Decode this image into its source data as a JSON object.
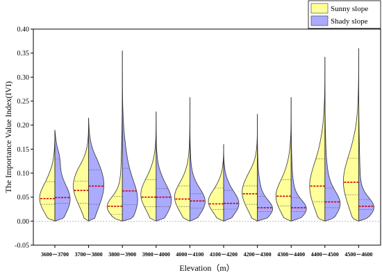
{
  "chart_data": {
    "type": "violin",
    "split": true,
    "xlabel": "Elevation（m）",
    "ylabel": "The Importance Value Index(IVI)",
    "ylim": [
      -0.05,
      0.4
    ],
    "yticks": [
      -0.05,
      0.0,
      0.05,
      0.1,
      0.15,
      0.2,
      0.25,
      0.3,
      0.35,
      0.4
    ],
    "legend": {
      "position": "top-right"
    },
    "categories": [
      "3600－3700",
      "3700－3800",
      "3800－3900",
      "3900－4000",
      "4000－4100",
      "4100－4200",
      "4200－4300",
      "4300－4400",
      "4400－4500",
      "4500－4600"
    ],
    "series": [
      {
        "name": "Sunny slope",
        "color": "#ffff99",
        "side": "left",
        "stats": [
          {
            "min": 0.0,
            "max": 0.19,
            "q1": 0.035,
            "median": 0.047,
            "q3": 0.082,
            "mode": 0.045
          },
          {
            "min": 0.0,
            "max": 0.215,
            "q1": 0.037,
            "median": 0.064,
            "q3": 0.083,
            "mode": 0.075
          },
          {
            "min": 0.0,
            "max": 0.355,
            "q1": 0.014,
            "median": 0.031,
            "q3": 0.052,
            "mode": 0.03
          },
          {
            "min": 0.0,
            "max": 0.228,
            "q1": 0.03,
            "median": 0.05,
            "q3": 0.086,
            "mode": 0.055
          },
          {
            "min": 0.0,
            "max": 0.258,
            "q1": 0.03,
            "median": 0.046,
            "q3": 0.073,
            "mode": 0.05
          },
          {
            "min": 0.0,
            "max": 0.16,
            "q1": 0.024,
            "median": 0.036,
            "q3": 0.069,
            "mode": 0.04
          },
          {
            "min": 0.0,
            "max": 0.223,
            "q1": 0.035,
            "median": 0.057,
            "q3": 0.073,
            "mode": 0.06
          },
          {
            "min": 0.0,
            "max": 0.258,
            "q1": 0.032,
            "median": 0.052,
            "q3": 0.086,
            "mode": 0.05
          },
          {
            "min": 0.0,
            "max": 0.342,
            "q1": 0.04,
            "median": 0.073,
            "q3": 0.13,
            "mode": 0.07
          },
          {
            "min": 0.0,
            "max": 0.36,
            "q1": 0.055,
            "median": 0.081,
            "q3": 0.131,
            "mode": 0.08
          }
        ]
      },
      {
        "name": "Shady slope",
        "color": "#aaaaff",
        "side": "right",
        "stats": [
          {
            "min": 0.0,
            "max": 0.19,
            "q1": 0.037,
            "median": 0.049,
            "q3": 0.13,
            "mode": 0.045
          },
          {
            "min": 0.0,
            "max": 0.215,
            "q1": 0.035,
            "median": 0.073,
            "q3": 0.107,
            "mode": 0.07
          },
          {
            "min": 0.0,
            "max": 0.355,
            "q1": 0.034,
            "median": 0.063,
            "q3": 0.11,
            "mode": 0.04
          },
          {
            "min": 0.0,
            "max": 0.228,
            "q1": 0.03,
            "median": 0.05,
            "q3": 0.068,
            "mode": 0.04
          },
          {
            "min": 0.0,
            "max": 0.258,
            "q1": 0.027,
            "median": 0.042,
            "q3": 0.057,
            "mode": 0.04
          },
          {
            "min": 0.0,
            "max": 0.16,
            "q1": 0.025,
            "median": 0.037,
            "q3": 0.064,
            "mode": 0.035
          },
          {
            "min": 0.0,
            "max": 0.223,
            "q1": 0.02,
            "median": 0.028,
            "q3": 0.052,
            "mode": 0.025
          },
          {
            "min": 0.0,
            "max": 0.258,
            "q1": 0.02,
            "median": 0.028,
            "q3": 0.049,
            "mode": 0.025
          },
          {
            "min": 0.0,
            "max": 0.342,
            "q1": 0.028,
            "median": 0.04,
            "q3": 0.069,
            "mode": 0.035
          },
          {
            "min": 0.0,
            "max": 0.36,
            "q1": 0.024,
            "median": 0.031,
            "q3": 0.045,
            "mode": 0.028
          }
        ]
      }
    ],
    "median_color": "#cc0000"
  }
}
